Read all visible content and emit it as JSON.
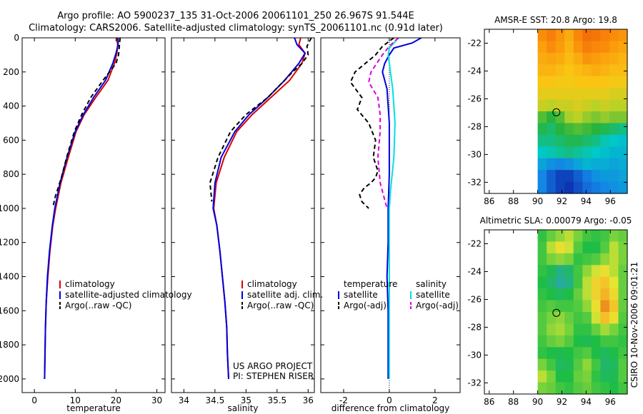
{
  "header": {
    "line1": "Argo profile: AO 5900237_135 31-Oct-2006 20061101_250 26.967S 91.544E",
    "line2": "Climatology: CARS2006. Satellite-adjusted climatology: synTS_20061101.nc (0.91d later)"
  },
  "footer": {
    "project": "US ARGO PROJECT",
    "pi": "PI: STEPHEN RISER",
    "stamp": "CSIRO 10-Nov-2006 09:01:21"
  },
  "colors": {
    "climatology": "#dd0000",
    "satellite": "#0000dd",
    "argo": "#000000",
    "satellite_salinity": "#00e0e0",
    "argo_salinity_adj": "#dd00dd"
  },
  "chart_data": [
    {
      "type": "line",
      "id": "temperature",
      "xlabel": "temperature",
      "ylabel": "",
      "xlim": [
        -3,
        32
      ],
      "ylim": [
        2080,
        0
      ],
      "xticks": [
        "0",
        "10",
        "20",
        "30"
      ],
      "xtick_values": [
        0,
        10,
        20,
        30
      ],
      "yticks": [
        "0",
        "200",
        "400",
        "600",
        "800",
        "1000",
        "1200",
        "1400",
        "1600",
        "1800",
        "2000"
      ],
      "ytick_values": [
        0,
        200,
        400,
        600,
        800,
        1000,
        1200,
        1400,
        1600,
        1800,
        2000
      ],
      "legend": [
        {
          "label": "climatology",
          "color": "#dd0000",
          "dash": false
        },
        {
          "label": "satellite-adjusted climatology",
          "color": "#0000dd",
          "dash": false
        },
        {
          "label": "Argo(..raw -QC)",
          "color": "#000000",
          "dash": true
        }
      ],
      "series": [
        {
          "name": "climatology",
          "color": "#dd0000",
          "dash": false,
          "x": [
            20.2,
            20.4,
            20.2,
            19.6,
            18.0,
            15.0,
            12.2,
            10.2,
            8.3,
            6.5,
            5.2,
            4.5,
            3.8,
            3.3,
            2.9,
            2.7,
            2.6,
            2.5
          ],
          "y": [
            0,
            40,
            90,
            150,
            250,
            350,
            450,
            550,
            700,
            850,
            1000,
            1100,
            1250,
            1400,
            1550,
            1700,
            1850,
            2000
          ]
        },
        {
          "name": "satellite-adjusted climatology",
          "color": "#0000dd",
          "dash": false,
          "x": [
            20.5,
            20.5,
            20.0,
            19.2,
            17.4,
            14.5,
            12.0,
            10.0,
            8.0,
            6.3,
            5.0,
            4.4,
            3.7,
            3.2,
            2.9,
            2.7,
            2.6,
            2.5
          ],
          "y": [
            0,
            40,
            90,
            150,
            250,
            350,
            450,
            550,
            700,
            850,
            1000,
            1100,
            1250,
            1400,
            1550,
            1700,
            1850,
            2000
          ]
        },
        {
          "name": "Argo(..raw -QC)",
          "color": "#000000",
          "dash": true,
          "x": [
            21.0,
            20.8,
            20.6,
            20.0,
            16.8,
            13.8,
            11.6,
            9.8,
            7.9,
            6.6,
            5.0,
            4.6
          ],
          "y": [
            0,
            50,
            100,
            150,
            250,
            350,
            450,
            550,
            700,
            820,
            940,
            990
          ]
        }
      ]
    },
    {
      "type": "line",
      "id": "salinity",
      "xlabel": "salinity",
      "ylabel": "",
      "xlim": [
        33.8,
        36.1
      ],
      "ylim": [
        2080,
        0
      ],
      "xticks": [
        "34",
        "34.5",
        "35",
        "35.5",
        "36"
      ],
      "xtick_values": [
        34,
        34.5,
        35,
        35.5,
        36
      ],
      "legend": [
        {
          "label": "climatology",
          "color": "#dd0000",
          "dash": false
        },
        {
          "label": "satellite adj. clim.",
          "color": "#0000dd",
          "dash": false
        },
        {
          "label": "Argo(..raw -QC)",
          "color": "#000000",
          "dash": true
        }
      ],
      "series": [
        {
          "name": "climatology",
          "color": "#dd0000",
          "dash": false,
          "x": [
            35.88,
            35.85,
            35.95,
            35.9,
            35.7,
            35.4,
            35.1,
            34.85,
            34.65,
            34.52,
            34.48,
            34.53,
            34.58,
            34.62,
            34.66,
            34.69,
            34.7,
            34.72
          ],
          "y": [
            0,
            40,
            90,
            150,
            250,
            350,
            450,
            550,
            700,
            850,
            1000,
            1100,
            1250,
            1400,
            1550,
            1700,
            1850,
            2000
          ]
        },
        {
          "name": "satellite adj. clim.",
          "color": "#0000dd",
          "dash": false,
          "x": [
            35.78,
            35.82,
            35.95,
            35.85,
            35.62,
            35.35,
            35.05,
            34.82,
            34.6,
            34.5,
            34.47,
            34.53,
            34.58,
            34.62,
            34.66,
            34.69,
            34.7,
            34.72
          ],
          "y": [
            0,
            40,
            90,
            150,
            250,
            350,
            450,
            550,
            700,
            850,
            1000,
            1100,
            1250,
            1400,
            1550,
            1700,
            1850,
            2000
          ]
        },
        {
          "name": "Argo(..raw -QC)",
          "color": "#000000",
          "dash": true,
          "x": [
            36.05,
            35.98,
            36.0,
            35.9,
            35.75,
            35.35,
            35.0,
            34.75,
            34.55,
            34.42,
            34.45
          ],
          "y": [
            0,
            50,
            100,
            150,
            200,
            350,
            450,
            550,
            700,
            850,
            960
          ]
        }
      ]
    },
    {
      "type": "line",
      "id": "difference",
      "xlabel": "difference from climatology",
      "ylabel": "",
      "xlim": [
        -3,
        3.1
      ],
      "ylim": [
        2080,
        0
      ],
      "xticks": [
        "-2",
        "0",
        "2"
      ],
      "xtick_values": [
        -2,
        0,
        2
      ],
      "legend_left": [
        {
          "label": "temperature",
          "color": "",
          "dash": false
        },
        {
          "label": "satellite",
          "color": "#0000dd",
          "dash": false
        },
        {
          "label": "Argo(-adj)",
          "color": "#000000",
          "dash": true
        }
      ],
      "legend_right": [
        {
          "label": "salinity",
          "color": "",
          "dash": false
        },
        {
          "label": "satellite",
          "color": "#00e0e0",
          "dash": false
        },
        {
          "label": "Argo(-adj)",
          "color": "#dd00dd",
          "dash": true
        }
      ],
      "series": [
        {
          "name": "temperature satellite",
          "color": "#0000dd",
          "dash": false,
          "x": [
            1.4,
            1.0,
            0.2,
            0.0,
            -0.2,
            -0.3,
            -0.1,
            0.0,
            0.0,
            -0.05,
            -0.05,
            -0.1,
            -0.05,
            -0.05,
            -0.05,
            -0.05
          ],
          "y": [
            0,
            30,
            60,
            100,
            150,
            200,
            300,
            500,
            800,
            1000,
            1200,
            1400,
            1600,
            1800,
            1900,
            2000
          ]
        },
        {
          "name": "temperature Argo(-adj)",
          "color": "#000000",
          "dash": true,
          "x": [
            0.2,
            -0.3,
            -0.6,
            -1.5,
            -1.7,
            -1.2,
            -1.4,
            -0.9,
            -0.6,
            -0.7,
            -0.5,
            -0.6,
            -0.8,
            -1.1,
            -1.3,
            -1.2,
            -0.9
          ],
          "y": [
            0,
            50,
            100,
            200,
            260,
            350,
            420,
            500,
            600,
            700,
            780,
            820,
            850,
            880,
            920,
            960,
            1000
          ]
        },
        {
          "name": "salinity satellite",
          "color": "#00e0e0",
          "dash": false,
          "x": [
            0.4,
            0.0,
            -0.05,
            0.05,
            0.15,
            0.2,
            0.25,
            0.2,
            0.05,
            0.0,
            0.0,
            0.0,
            0.0,
            0.0
          ],
          "y": [
            0,
            60,
            100,
            200,
            300,
            400,
            500,
            700,
            900,
            1000,
            1200,
            1600,
            1900,
            2000
          ]
        },
        {
          "name": "salinity Argo(-adj)",
          "color": "#dd00dd",
          "dash": true,
          "x": [
            0.4,
            0.0,
            -0.3,
            -0.8,
            -0.9,
            -0.5,
            -0.4,
            -0.4,
            -0.5,
            -0.4,
            -0.2,
            -0.1
          ],
          "y": [
            0,
            50,
            100,
            200,
            260,
            350,
            450,
            550,
            700,
            850,
            950,
            1000
          ]
        }
      ]
    },
    {
      "type": "heatmap",
      "id": "sst",
      "title": "AMSR-E SST: 20.8 Argo: 19.8",
      "xlim": [
        85.6,
        97.4
      ],
      "ylim": [
        -32.8,
        -21.0
      ],
      "xticks": [
        "86",
        "88",
        "90",
        "92",
        "94",
        "96"
      ],
      "xtick_values": [
        86,
        88,
        90,
        92,
        94,
        96
      ],
      "yticks": [
        "-22",
        "-24",
        "-26",
        "-28",
        "-30",
        "-32"
      ],
      "ytick_values": [
        -22,
        -24,
        -26,
        -28,
        -30,
        -32
      ],
      "data_lon_range": [
        90,
        97.4
      ],
      "marker": {
        "lon": 91.544,
        "lat": -26.967
      },
      "grid_cols": 10,
      "grid_rows": 14,
      "values": [
        [
          0.8,
          0.85,
          0.78,
          0.72,
          0.82,
          0.9,
          0.88,
          0.84,
          0.8,
          0.78
        ],
        [
          0.75,
          0.8,
          0.76,
          0.7,
          0.78,
          0.85,
          0.82,
          0.8,
          0.76,
          0.74
        ],
        [
          0.72,
          0.74,
          0.72,
          0.68,
          0.72,
          0.78,
          0.76,
          0.74,
          0.72,
          0.7
        ],
        [
          0.7,
          0.7,
          0.68,
          0.66,
          0.68,
          0.7,
          0.72,
          0.7,
          0.68,
          0.68
        ],
        [
          0.66,
          0.66,
          0.64,
          0.64,
          0.66,
          0.66,
          0.66,
          0.66,
          0.64,
          0.64
        ],
        [
          0.62,
          0.62,
          0.62,
          0.62,
          0.62,
          0.62,
          0.62,
          0.62,
          0.6,
          0.6
        ],
        [
          0.58,
          0.56,
          0.58,
          0.58,
          0.6,
          0.58,
          0.56,
          0.58,
          0.56,
          0.56
        ],
        [
          0.46,
          0.42,
          0.46,
          0.54,
          0.56,
          0.52,
          0.5,
          0.52,
          0.5,
          0.5
        ],
        [
          0.4,
          0.38,
          0.42,
          0.44,
          0.46,
          0.44,
          0.42,
          0.4,
          0.38,
          0.36
        ],
        [
          0.36,
          0.36,
          0.38,
          0.4,
          0.4,
          0.38,
          0.36,
          0.32,
          0.3,
          0.28
        ],
        [
          0.3,
          0.32,
          0.34,
          0.36,
          0.34,
          0.32,
          0.3,
          0.28,
          0.26,
          0.26
        ],
        [
          0.22,
          0.18,
          0.16,
          0.18,
          0.22,
          0.26,
          0.24,
          0.24,
          0.22,
          0.24
        ],
        [
          0.16,
          0.1,
          0.06,
          0.06,
          0.1,
          0.14,
          0.18,
          0.2,
          0.2,
          0.22
        ],
        [
          0.16,
          0.1,
          0.06,
          0.04,
          0.08,
          0.12,
          0.14,
          0.16,
          0.18,
          0.2
        ]
      ]
    },
    {
      "type": "heatmap",
      "id": "sla",
      "title": "Altimetric SLA: 0.00079 Argo: -0.05",
      "xlim": [
        85.6,
        97.4
      ],
      "ylim": [
        -32.8,
        -21.0
      ],
      "xticks": [
        "86",
        "88",
        "90",
        "92",
        "94",
        "96"
      ],
      "xtick_values": [
        86,
        88,
        90,
        92,
        94,
        96
      ],
      "yticks": [
        "-22",
        "-24",
        "-26",
        "-28",
        "-30",
        "-32"
      ],
      "ytick_values": [
        -22,
        -24,
        -26,
        -28,
        -30,
        -32
      ],
      "data_lon_range": [
        90,
        97.4
      ],
      "marker": {
        "lon": 91.544,
        "lat": -26.967
      },
      "grid_cols": 10,
      "grid_rows": 14,
      "values": [
        [
          0.42,
          0.48,
          0.52,
          0.56,
          0.5,
          0.44,
          0.42,
          0.44,
          0.5,
          0.48
        ],
        [
          0.44,
          0.56,
          0.62,
          0.58,
          0.46,
          0.4,
          0.4,
          0.46,
          0.56,
          0.5
        ],
        [
          0.44,
          0.5,
          0.52,
          0.5,
          0.42,
          0.44,
          0.46,
          0.52,
          0.56,
          0.5
        ],
        [
          0.42,
          0.38,
          0.3,
          0.34,
          0.44,
          0.52,
          0.58,
          0.62,
          0.56,
          0.48
        ],
        [
          0.4,
          0.34,
          0.26,
          0.3,
          0.44,
          0.56,
          0.66,
          0.7,
          0.6,
          0.48
        ],
        [
          0.42,
          0.4,
          0.36,
          0.4,
          0.48,
          0.56,
          0.66,
          0.74,
          0.64,
          0.48
        ],
        [
          0.44,
          0.46,
          0.44,
          0.44,
          0.46,
          0.52,
          0.62,
          0.82,
          0.7,
          0.48
        ],
        [
          0.46,
          0.5,
          0.52,
          0.48,
          0.44,
          0.46,
          0.58,
          0.72,
          0.62,
          0.46
        ],
        [
          0.46,
          0.52,
          0.54,
          0.5,
          0.42,
          0.42,
          0.48,
          0.54,
          0.5,
          0.44
        ],
        [
          0.44,
          0.48,
          0.5,
          0.46,
          0.4,
          0.38,
          0.4,
          0.44,
          0.44,
          0.42
        ],
        [
          0.42,
          0.4,
          0.38,
          0.4,
          0.44,
          0.46,
          0.4,
          0.36,
          0.4,
          0.44
        ],
        [
          0.5,
          0.44,
          0.36,
          0.38,
          0.46,
          0.52,
          0.44,
          0.34,
          0.36,
          0.46
        ],
        [
          0.56,
          0.5,
          0.4,
          0.4,
          0.48,
          0.5,
          0.42,
          0.36,
          0.38,
          0.46
        ],
        [
          0.5,
          0.48,
          0.44,
          0.42,
          0.46,
          0.48,
          0.44,
          0.42,
          0.4,
          0.44
        ]
      ]
    }
  ]
}
